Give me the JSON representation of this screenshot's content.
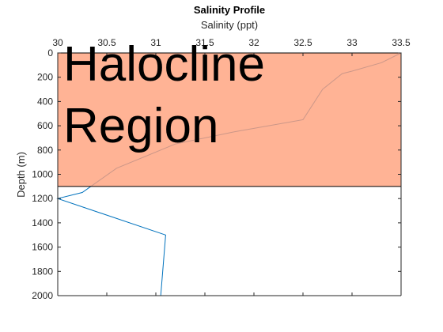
{
  "chart_data": {
    "type": "line",
    "title": "Salinity Profile",
    "xlabel": "Salinity (ppt)",
    "ylabel": "Depth (m)",
    "xlim": [
      30,
      33.5
    ],
    "ylim": [
      0,
      2000
    ],
    "y_reversed": true,
    "x_axis_location": "top",
    "x_ticks": [
      30,
      30.5,
      31,
      31.5,
      32,
      32.5,
      33,
      33.5
    ],
    "x_tick_labels": [
      "30",
      "30.5",
      "31",
      "31.5",
      "32",
      "32.5",
      "33",
      "33.5"
    ],
    "y_ticks": [
      0,
      200,
      400,
      600,
      800,
      1000,
      1200,
      1400,
      1600,
      1800,
      2000
    ],
    "y_tick_labels": [
      "0",
      "200",
      "400",
      "600",
      "800",
      "1000",
      "1200",
      "1400",
      "1600",
      "1800",
      "2000"
    ],
    "grid": false,
    "series": [
      {
        "color": "#0072BD",
        "x": [
          33.5,
          33.3,
          33.0,
          32.9,
          32.7,
          32.5,
          31.8,
          31.2,
          30.9,
          30.6,
          30.25,
          30.0,
          31.1,
          31.05
        ],
        "y": [
          0,
          80,
          150,
          170,
          300,
          550,
          650,
          750,
          850,
          950,
          1150,
          1200,
          1500,
          2000
        ]
      }
    ],
    "highlight_region": {
      "y_range": [
        0,
        1100
      ],
      "color": "#FFA07A",
      "opacity": 0.8,
      "label_lines": [
        "Halocline",
        "Region"
      ]
    }
  }
}
